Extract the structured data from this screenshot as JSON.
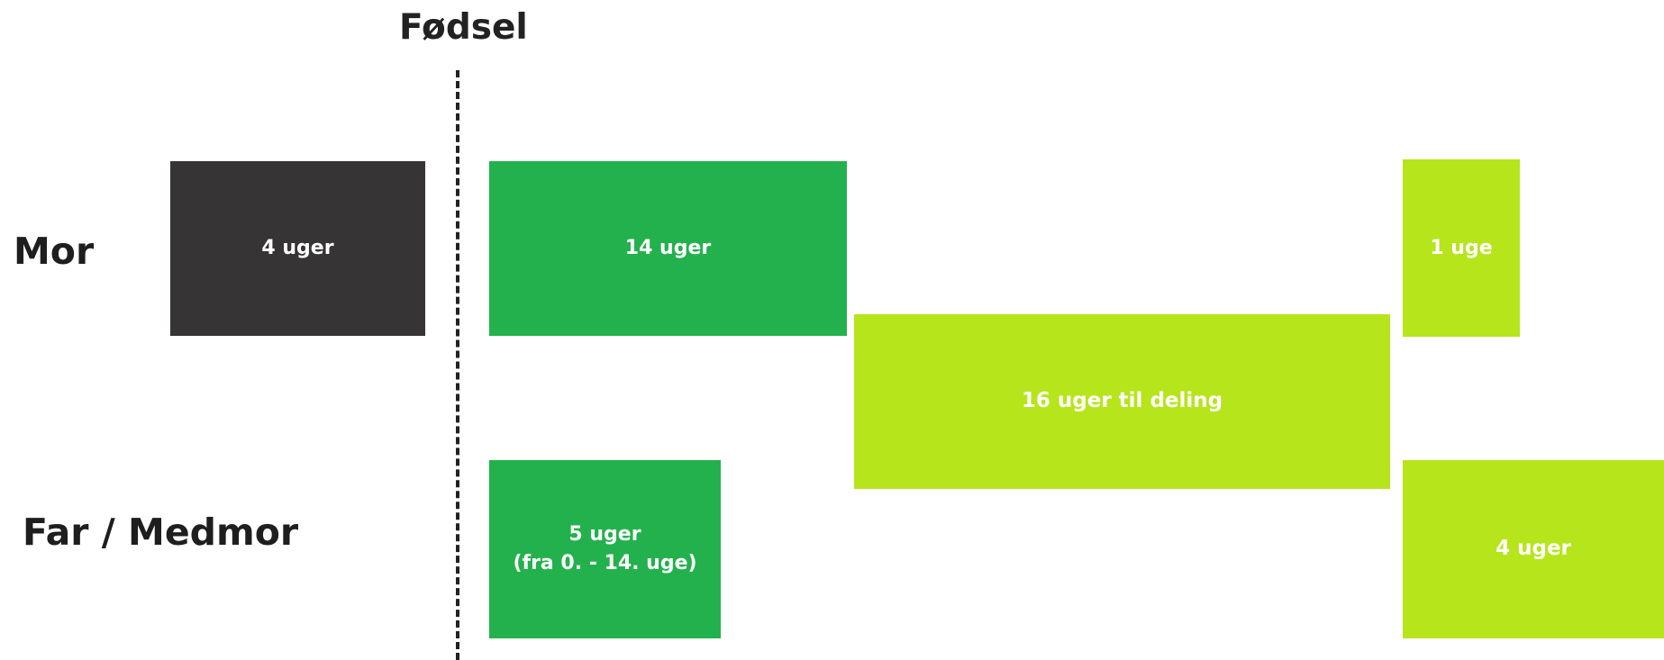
{
  "title": "Fødsel",
  "rows": {
    "mor": "Mor",
    "far": "Far / Medmor"
  },
  "colors": {
    "pre_birth": "#363435",
    "mother_14": "#23b14d",
    "shared": "#b6e51c",
    "father_5": "#23b14d",
    "mother_1": "#b6e51c",
    "father_4": "#b6e51c"
  },
  "blocks": {
    "mor_pre": {
      "label": "4 uger"
    },
    "mor_14": {
      "label": "14 uger"
    },
    "shared": {
      "label": "16 uger til deling"
    },
    "mor_1": {
      "label": "1 uge"
    },
    "far_5": {
      "line1": "5 uger",
      "line2": "(fra 0. - 14. uge)"
    },
    "far_4": {
      "label": "4 uger"
    }
  }
}
